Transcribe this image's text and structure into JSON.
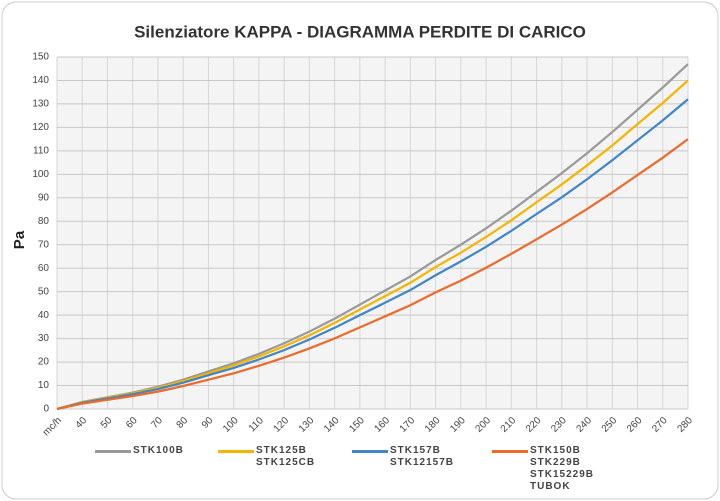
{
  "chart_data": {
    "type": "line",
    "title": "Silenziatore KAPPA - DIAGRAMMA PERDITE DI CARICO",
    "y_label": "Pa",
    "categories": [
      "mc/h",
      "40",
      "50",
      "60",
      "70",
      "80",
      "90",
      "100",
      "110",
      "120",
      "130",
      "140",
      "150",
      "160",
      "170",
      "180",
      "190",
      "200",
      "210",
      "220",
      "230",
      "240",
      "250",
      "260",
      "270",
      "280"
    ],
    "ylim": [
      0,
      150
    ],
    "yticks": [
      0,
      10,
      20,
      30,
      40,
      50,
      60,
      70,
      80,
      90,
      100,
      110,
      120,
      130,
      140,
      150
    ],
    "grid": true,
    "series": [
      {
        "name": "STK100B",
        "color": "#999999",
        "values": [
          0,
          3,
          5,
          7,
          9.5,
          12.5,
          16,
          19.5,
          23.5,
          28,
          33,
          38.5,
          44.5,
          50.5,
          56.5,
          63.5,
          70,
          77,
          84.5,
          92.5,
          100.5,
          109,
          118,
          127.5,
          137,
          147
        ]
      },
      {
        "name": "STK125B\nSTK125CB",
        "color": "#f5b400",
        "values": [
          0,
          2.9,
          4.8,
          6.7,
          9,
          11.9,
          15.2,
          18.6,
          22.4,
          26.7,
          31.4,
          36.7,
          42.4,
          48.1,
          53.8,
          60.5,
          66.6,
          73.3,
          80.4,
          88.1,
          95.7,
          103.8,
          112.3,
          121.4,
          130.4,
          140
        ]
      },
      {
        "name": "STK157B\nSTK12157B",
        "color": "#3f86c8",
        "values": [
          0,
          2.7,
          4.5,
          6.3,
          8.5,
          11.2,
          14.4,
          17.5,
          21.1,
          25.1,
          29.6,
          34.6,
          40,
          45.3,
          50.7,
          57,
          62.9,
          69.1,
          75.9,
          83.1,
          90.2,
          97.9,
          106,
          114.5,
          123,
          132
        ]
      },
      {
        "name": "STK150B\nSTK229B\nSTK15229B\nTUBOK",
        "color": "#ec6a2a",
        "values": [
          0,
          2.3,
          3.9,
          5.5,
          7.4,
          9.8,
          12.5,
          15.2,
          18.4,
          21.9,
          25.8,
          30.1,
          34.8,
          39.5,
          44.2,
          49.7,
          54.7,
          60.2,
          66.1,
          72.3,
          78.6,
          85.2,
          92.3,
          99.7,
          107.1,
          115
        ]
      }
    ]
  }
}
